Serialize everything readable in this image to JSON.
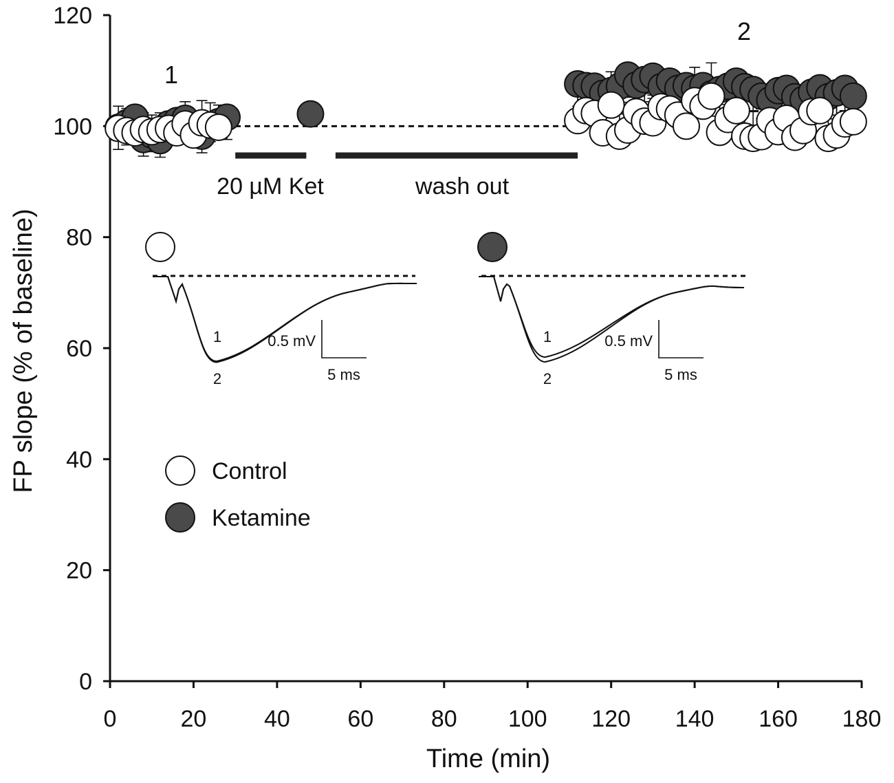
{
  "colors": {
    "ketamine_fill": "#4a4a4a",
    "control_fill": "#ffffff",
    "stroke": "#111111"
  },
  "chart_data": {
    "type": "scatter",
    "title": "",
    "xlabel": "Time (min)",
    "ylabel": "FP slope (% of baseline)",
    "xlim": [
      0,
      180
    ],
    "ylim": [
      0,
      120
    ],
    "xticks": [
      0,
      20,
      40,
      60,
      80,
      100,
      120,
      140,
      160,
      180
    ],
    "yticks": [
      0,
      20,
      40,
      60,
      80,
      100,
      120
    ],
    "baseline": {
      "value": 100,
      "x_range": [
        0,
        110
      ]
    },
    "series": [
      {
        "name": "Ketamine",
        "marker": "filled-circle",
        "color": "#4a4a4a",
        "points": [
          {
            "x": 2,
            "y": 99.8,
            "err": 4
          },
          {
            "x": 4,
            "y": 100.6,
            "err": 4
          },
          {
            "x": 6,
            "y": 101.6,
            "err": 4
          },
          {
            "x": 8,
            "y": 97.6,
            "err": 3
          },
          {
            "x": 10,
            "y": 98.4,
            "err": 3
          },
          {
            "x": 12,
            "y": 97.4,
            "err": 3
          },
          {
            "x": 14,
            "y": 100.4,
            "err": 3
          },
          {
            "x": 16,
            "y": 101.0,
            "err": 3
          },
          {
            "x": 18,
            "y": 101.4,
            "err": 3
          },
          {
            "x": 20,
            "y": 100.0,
            "err": 3
          },
          {
            "x": 22,
            "y": 98.2,
            "err": 3
          },
          {
            "x": 24,
            "y": 100.2,
            "err": 3
          },
          {
            "x": 26,
            "y": 100.8,
            "err": 3
          },
          {
            "x": 28,
            "y": 101.6,
            "err": 4
          },
          {
            "x": 48,
            "y": 102.2,
            "err": 0
          },
          {
            "x": 112,
            "y": 107.6,
            "err": 4
          },
          {
            "x": 114,
            "y": 107.3,
            "err": 4
          },
          {
            "x": 116,
            "y": 107.2,
            "err": 4
          },
          {
            "x": 118,
            "y": 105.9,
            "err": 4
          },
          {
            "x": 120,
            "y": 106.4,
            "err": 4
          },
          {
            "x": 122,
            "y": 107.2,
            "err": 5
          },
          {
            "x": 124,
            "y": 109.2,
            "err": 4
          },
          {
            "x": 126,
            "y": 107.4,
            "err": 5
          },
          {
            "x": 128,
            "y": 108.4,
            "err": 4
          },
          {
            "x": 130,
            "y": 109.0,
            "err": 4
          },
          {
            "x": 132,
            "y": 107.1,
            "err": 4
          },
          {
            "x": 134,
            "y": 108.1,
            "err": 4
          },
          {
            "x": 136,
            "y": 106.8,
            "err": 4
          },
          {
            "x": 138,
            "y": 107.3,
            "err": 4
          },
          {
            "x": 140,
            "y": 106.8,
            "err": 4
          },
          {
            "x": 142,
            "y": 107.3,
            "err": 4
          },
          {
            "x": 144,
            "y": 105.8,
            "err": 4
          },
          {
            "x": 146,
            "y": 106.6,
            "err": 7
          },
          {
            "x": 148,
            "y": 107.2,
            "err": 5
          },
          {
            "x": 150,
            "y": 108.1,
            "err": 4
          },
          {
            "x": 152,
            "y": 107.1,
            "err": 4
          },
          {
            "x": 154,
            "y": 106.6,
            "err": 4
          },
          {
            "x": 156,
            "y": 105.4,
            "err": 4
          },
          {
            "x": 158,
            "y": 104.7,
            "err": 4
          },
          {
            "x": 160,
            "y": 106.4,
            "err": 4
          },
          {
            "x": 162,
            "y": 106.8,
            "err": 7
          },
          {
            "x": 164,
            "y": 105.3,
            "err": 4
          },
          {
            "x": 166,
            "y": 104.8,
            "err": 4
          },
          {
            "x": 168,
            "y": 106.1,
            "err": 4
          },
          {
            "x": 170,
            "y": 106.9,
            "err": 5
          },
          {
            "x": 172,
            "y": 105.3,
            "err": 4
          },
          {
            "x": 174,
            "y": 106.0,
            "err": 4
          },
          {
            "x": 176,
            "y": 106.8,
            "err": 4
          },
          {
            "x": 178,
            "y": 105.4,
            "err": 4
          }
        ]
      },
      {
        "name": "Control",
        "marker": "open-circle",
        "color": "#ffffff",
        "points": [
          {
            "x": 2,
            "y": 99.6,
            "err": 4
          },
          {
            "x": 4,
            "y": 99.2,
            "err": 4
          },
          {
            "x": 6,
            "y": 98.8,
            "err": 4
          },
          {
            "x": 8,
            "y": 99.4,
            "err": 3
          },
          {
            "x": 10,
            "y": 99.0,
            "err": 3
          },
          {
            "x": 12,
            "y": 99.4,
            "err": 3
          },
          {
            "x": 14,
            "y": 99.6,
            "err": 3
          },
          {
            "x": 16,
            "y": 98.8,
            "err": 4
          },
          {
            "x": 18,
            "y": 100.4,
            "err": 4
          },
          {
            "x": 20,
            "y": 98.4,
            "err": 4
          },
          {
            "x": 22,
            "y": 100.6,
            "err": 4
          },
          {
            "x": 24,
            "y": 100.2,
            "err": 4
          },
          {
            "x": 26,
            "y": 99.8,
            "err": 4
          },
          {
            "x": 112,
            "y": 101.0,
            "err": 5
          },
          {
            "x": 114,
            "y": 102.8,
            "err": 5
          },
          {
            "x": 116,
            "y": 102.3,
            "err": 5
          },
          {
            "x": 118,
            "y": 98.8,
            "err": 5
          },
          {
            "x": 120,
            "y": 103.8,
            "err": 6
          },
          {
            "x": 122,
            "y": 98.2,
            "err": 4
          },
          {
            "x": 124,
            "y": 99.3,
            "err": 5
          },
          {
            "x": 126,
            "y": 102.6,
            "err": 5
          },
          {
            "x": 128,
            "y": 100.9,
            "err": 5
          },
          {
            "x": 130,
            "y": 100.6,
            "err": 5
          },
          {
            "x": 132,
            "y": 103.5,
            "err": 5
          },
          {
            "x": 134,
            "y": 103.1,
            "err": 4
          },
          {
            "x": 136,
            "y": 102.0,
            "err": 5
          },
          {
            "x": 138,
            "y": 100.0,
            "err": 5
          },
          {
            "x": 140,
            "y": 104.6,
            "err": 6
          },
          {
            "x": 142,
            "y": 103.6,
            "err": 4
          },
          {
            "x": 144,
            "y": 105.4,
            "err": 6
          },
          {
            "x": 146,
            "y": 98.9,
            "err": 5
          },
          {
            "x": 148,
            "y": 101.2,
            "err": 5
          },
          {
            "x": 150,
            "y": 102.8,
            "err": 5
          },
          {
            "x": 152,
            "y": 98.2,
            "err": 5
          },
          {
            "x": 154,
            "y": 97.8,
            "err": 5
          },
          {
            "x": 156,
            "y": 98.1,
            "err": 5
          },
          {
            "x": 158,
            "y": 101.0,
            "err": 5
          },
          {
            "x": 160,
            "y": 99.0,
            "err": 4
          },
          {
            "x": 162,
            "y": 101.4,
            "err": 5
          },
          {
            "x": 164,
            "y": 98.0,
            "err": 5
          },
          {
            "x": 166,
            "y": 99.2,
            "err": 5
          },
          {
            "x": 168,
            "y": 102.6,
            "err": 5
          },
          {
            "x": 170,
            "y": 102.8,
            "err": 6
          },
          {
            "x": 172,
            "y": 97.8,
            "err": 5
          },
          {
            "x": 174,
            "y": 98.4,
            "err": 6
          },
          {
            "x": 176,
            "y": 100.4,
            "err": 4
          },
          {
            "x": 178,
            "y": 100.8,
            "err": 4
          }
        ]
      }
    ],
    "time_markers": [
      {
        "label": "1",
        "x": 14
      },
      {
        "label": "2",
        "x": 150
      }
    ],
    "treatment_bars": [
      {
        "label": "20 µM Ket",
        "x_start": 30,
        "x_end": 47
      },
      {
        "label": "wash out",
        "x_start": 54,
        "x_end": 112
      }
    ],
    "legend": {
      "placement": "lower-left",
      "entries": [
        {
          "label": "Control",
          "marker": "open-circle"
        },
        {
          "label": "Ketamine",
          "marker": "filled-circle"
        }
      ]
    },
    "insets": [
      {
        "group": "Control",
        "marker": "open-circle",
        "trace_labels": [
          "1",
          "2"
        ],
        "scale_voltage": "0.5 mV",
        "scale_time": "5 ms"
      },
      {
        "group": "Ketamine",
        "marker": "filled-circle",
        "trace_labels": [
          "1",
          "2"
        ],
        "scale_voltage": "0.5 mV",
        "scale_time": "5 ms"
      }
    ]
  }
}
